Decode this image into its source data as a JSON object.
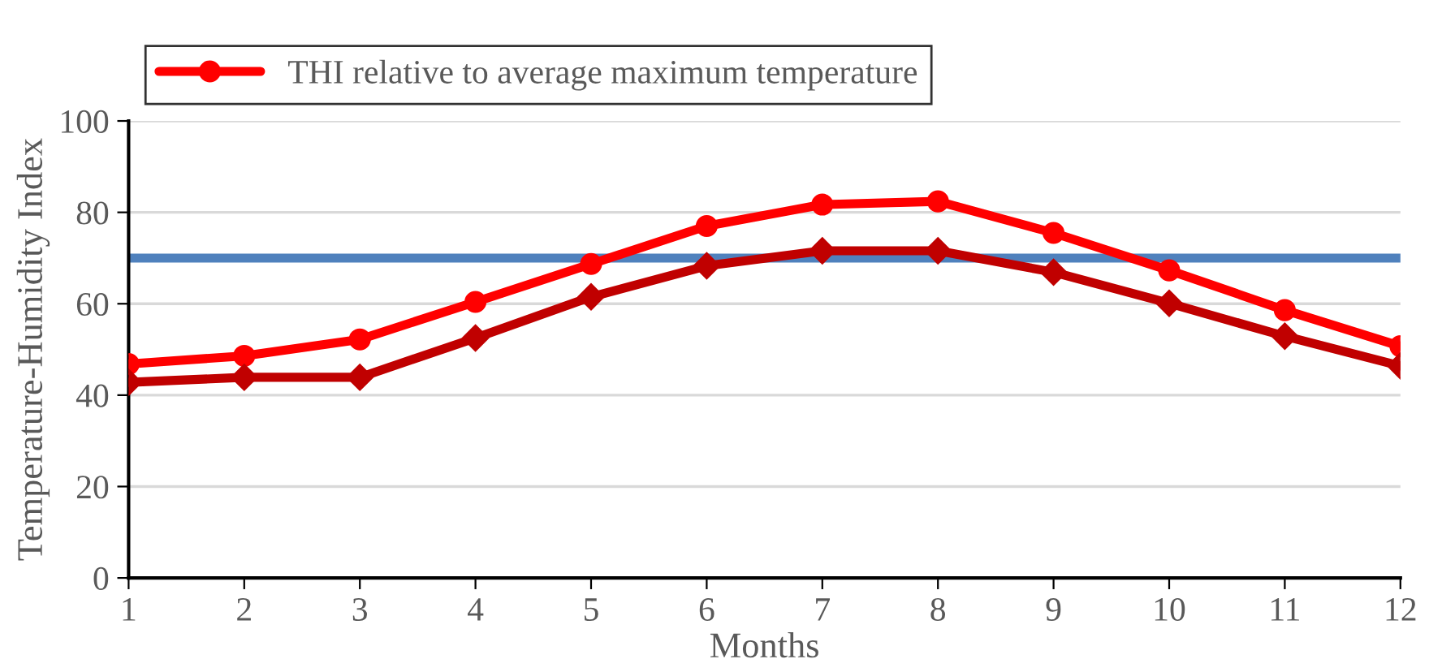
{
  "chart_data": {
    "type": "line",
    "xlabel": "Months",
    "ylabel": "Temperature-Humidity Index",
    "x": [
      1,
      2,
      3,
      4,
      5,
      6,
      7,
      8,
      9,
      10,
      11,
      12
    ],
    "series": [
      {
        "name": "THI relative to average maximum temperature",
        "color": "#ff0000",
        "marker": "circle",
        "values": [
          46.8,
          48.6,
          52.2,
          60.4,
          68.7,
          77,
          81.7,
          82.4,
          75.5,
          67.3,
          58.6,
          50.7
        ]
      },
      {
        "color": "#c00000",
        "marker": "diamond",
        "values": [
          42.8,
          43.9,
          43.9,
          52.5,
          61.5,
          68.3,
          71.6,
          71.6,
          66.9,
          60.1,
          52.9,
          46.4
        ]
      }
    ],
    "ref_lines": [
      {
        "axis": "y",
        "value": 70,
        "color": "#4f81bd"
      }
    ],
    "xlim": [
      1,
      12
    ],
    "xticks": [
      1,
      2,
      3,
      4,
      5,
      6,
      7,
      8,
      9,
      10,
      11,
      12
    ],
    "ylim": [
      0,
      100
    ],
    "yticks": [
      0,
      20,
      40,
      60,
      80,
      100
    ],
    "grid": "y",
    "legend": "top",
    "line_style": "solid"
  }
}
